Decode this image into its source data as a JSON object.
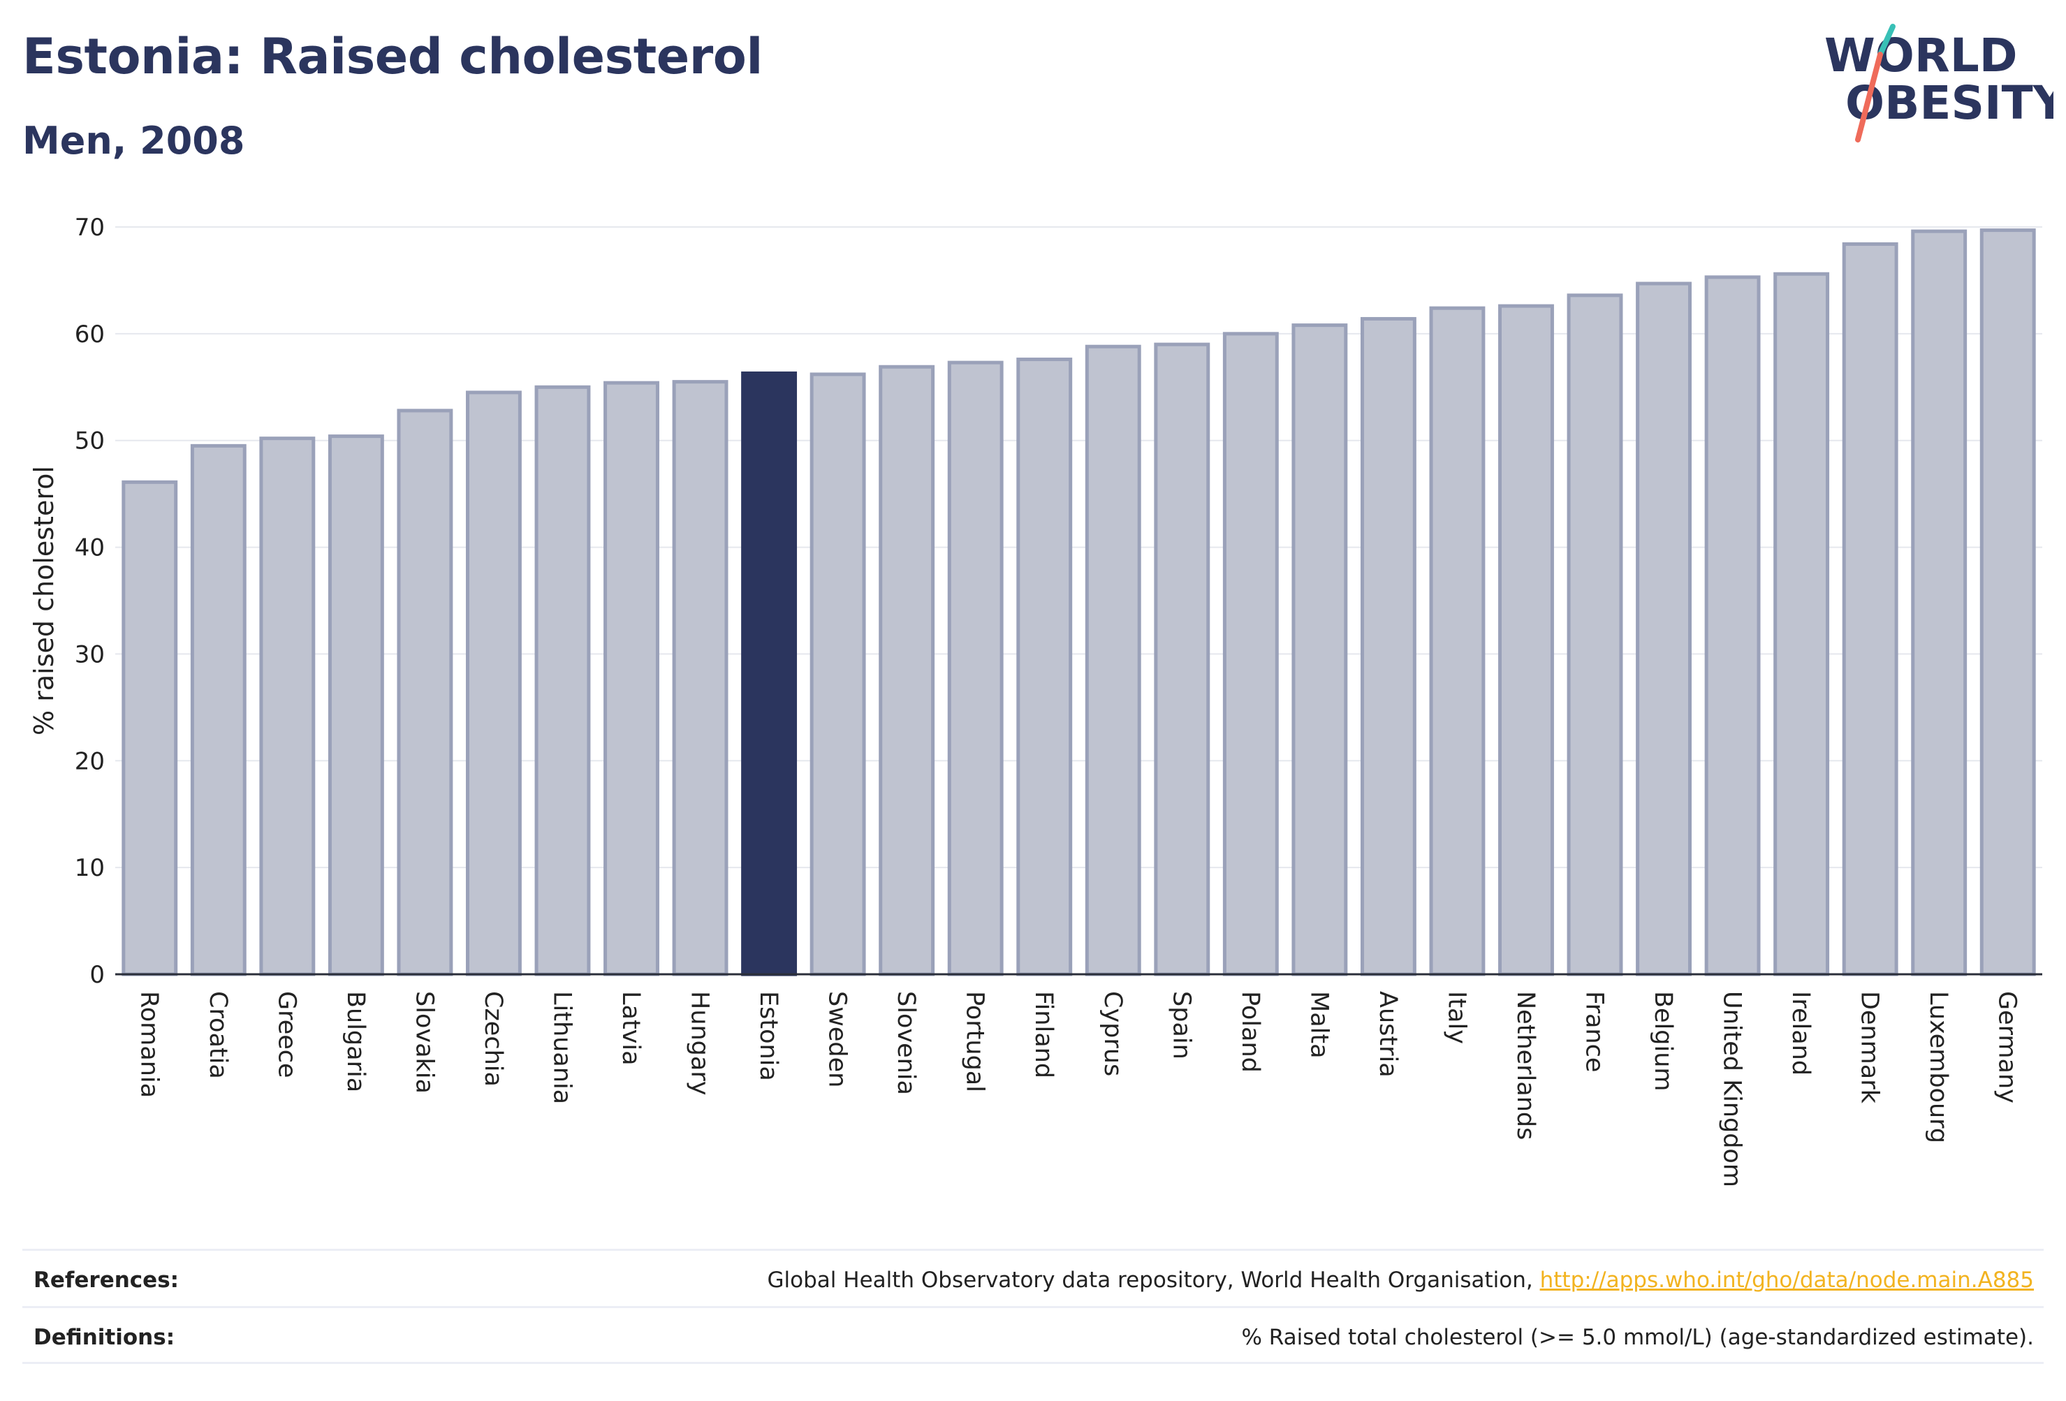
{
  "header": {
    "title": "Estonia: Raised cholesterol",
    "subtitle": "Men, 2008"
  },
  "logo": {
    "line1": "WORLD",
    "line2": "OBESITY"
  },
  "colors": {
    "highlight": "#2b355e",
    "bar_fill": "#bfc3d0",
    "bar_stroke": "#9aa1b9",
    "grid": "#e6e8ee",
    "logo_teal": "#38c0b6",
    "logo_coral": "#ef6b5a",
    "link": "#f2b320"
  },
  "chart_data": {
    "type": "bar",
    "highlight": "Estonia",
    "ylabel": "% raised cholesterol",
    "ylim": [
      0,
      70
    ],
    "yticks": [
      0,
      10,
      20,
      30,
      40,
      50,
      60,
      70
    ],
    "grid": true,
    "categories": [
      "Romania",
      "Croatia",
      "Greece",
      "Bulgaria",
      "Slovakia",
      "Czechia",
      "Lithuania",
      "Latvia",
      "Hungary",
      "Estonia",
      "Sweden",
      "Slovenia",
      "Portugal",
      "Finland",
      "Cyprus",
      "Spain",
      "Poland",
      "Malta",
      "Austria",
      "Italy",
      "Netherlands",
      "France",
      "Belgium",
      "United Kingdom",
      "Ireland",
      "Denmark",
      "Luxembourg",
      "Germany"
    ],
    "values": [
      46.1,
      49.5,
      50.2,
      50.4,
      52.8,
      54.5,
      55.0,
      55.4,
      55.5,
      56.3,
      56.2,
      56.9,
      57.3,
      57.6,
      58.8,
      59.0,
      60.0,
      60.8,
      61.4,
      62.4,
      62.6,
      63.6,
      64.7,
      65.3,
      65.6,
      68.4,
      69.6,
      69.7
    ]
  },
  "footer": {
    "references_label": "References:",
    "references_text": "Global Health Observatory data repository, World Health Organisation, ",
    "references_link": "http://apps.who.int/gho/data/node.main.A885",
    "definitions_label": "Definitions:",
    "definitions_text": "% Raised total cholesterol (>= 5.0 mmol/L) (age-standardized estimate)."
  }
}
